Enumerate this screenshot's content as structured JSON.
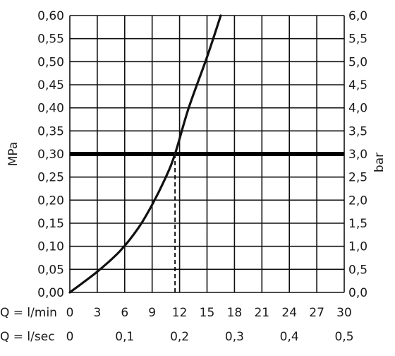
{
  "chart_data": {
    "type": "line",
    "left_axis": {
      "label": "MPa",
      "ylim": [
        0,
        0.6
      ],
      "tick_labels": [
        "0,00",
        "0,05",
        "0,10",
        "0,15",
        "0,20",
        "0,25",
        "0,30",
        "0,35",
        "0,40",
        "0,45",
        "0,50",
        "0,55",
        "0,60"
      ]
    },
    "right_axis": {
      "label": "bar",
      "ylim": [
        0,
        6
      ],
      "tick_labels": [
        "0,0",
        "0,5",
        "1,0",
        "1,5",
        "2,0",
        "2,5",
        "3,0",
        "3,5",
        "4,0",
        "4,5",
        "5,0",
        "5,5",
        "6,0"
      ]
    },
    "x_axis_lmin": {
      "label": "Q = l/min",
      "xlim": [
        0,
        30
      ],
      "tick_labels": [
        "0",
        "3",
        "6",
        "9",
        "12",
        "15",
        "18",
        "21",
        "24",
        "27",
        "30"
      ]
    },
    "x_axis_lsec": {
      "label": "Q = l/sec",
      "tick_values": [
        0,
        0.1,
        0.2,
        0.3,
        0.4,
        0.5
      ],
      "tick_labels": [
        "0",
        "0,1",
        "0,2",
        "0,3",
        "0,4",
        "0,5"
      ]
    },
    "series": [
      {
        "x": [
          0,
          3,
          5.5,
          7.5,
          9,
          10.5,
          11.5,
          13,
          15,
          16.5
        ],
        "y": [
          0,
          0.045,
          0.09,
          0.14,
          0.19,
          0.25,
          0.3,
          0.4,
          0.51,
          0.6
        ]
      }
    ],
    "reference_line": {
      "y": 0.3
    },
    "intersection_x": 11.5,
    "grid": true,
    "colors": {
      "curve": "#111111",
      "grid": "#111111"
    }
  }
}
